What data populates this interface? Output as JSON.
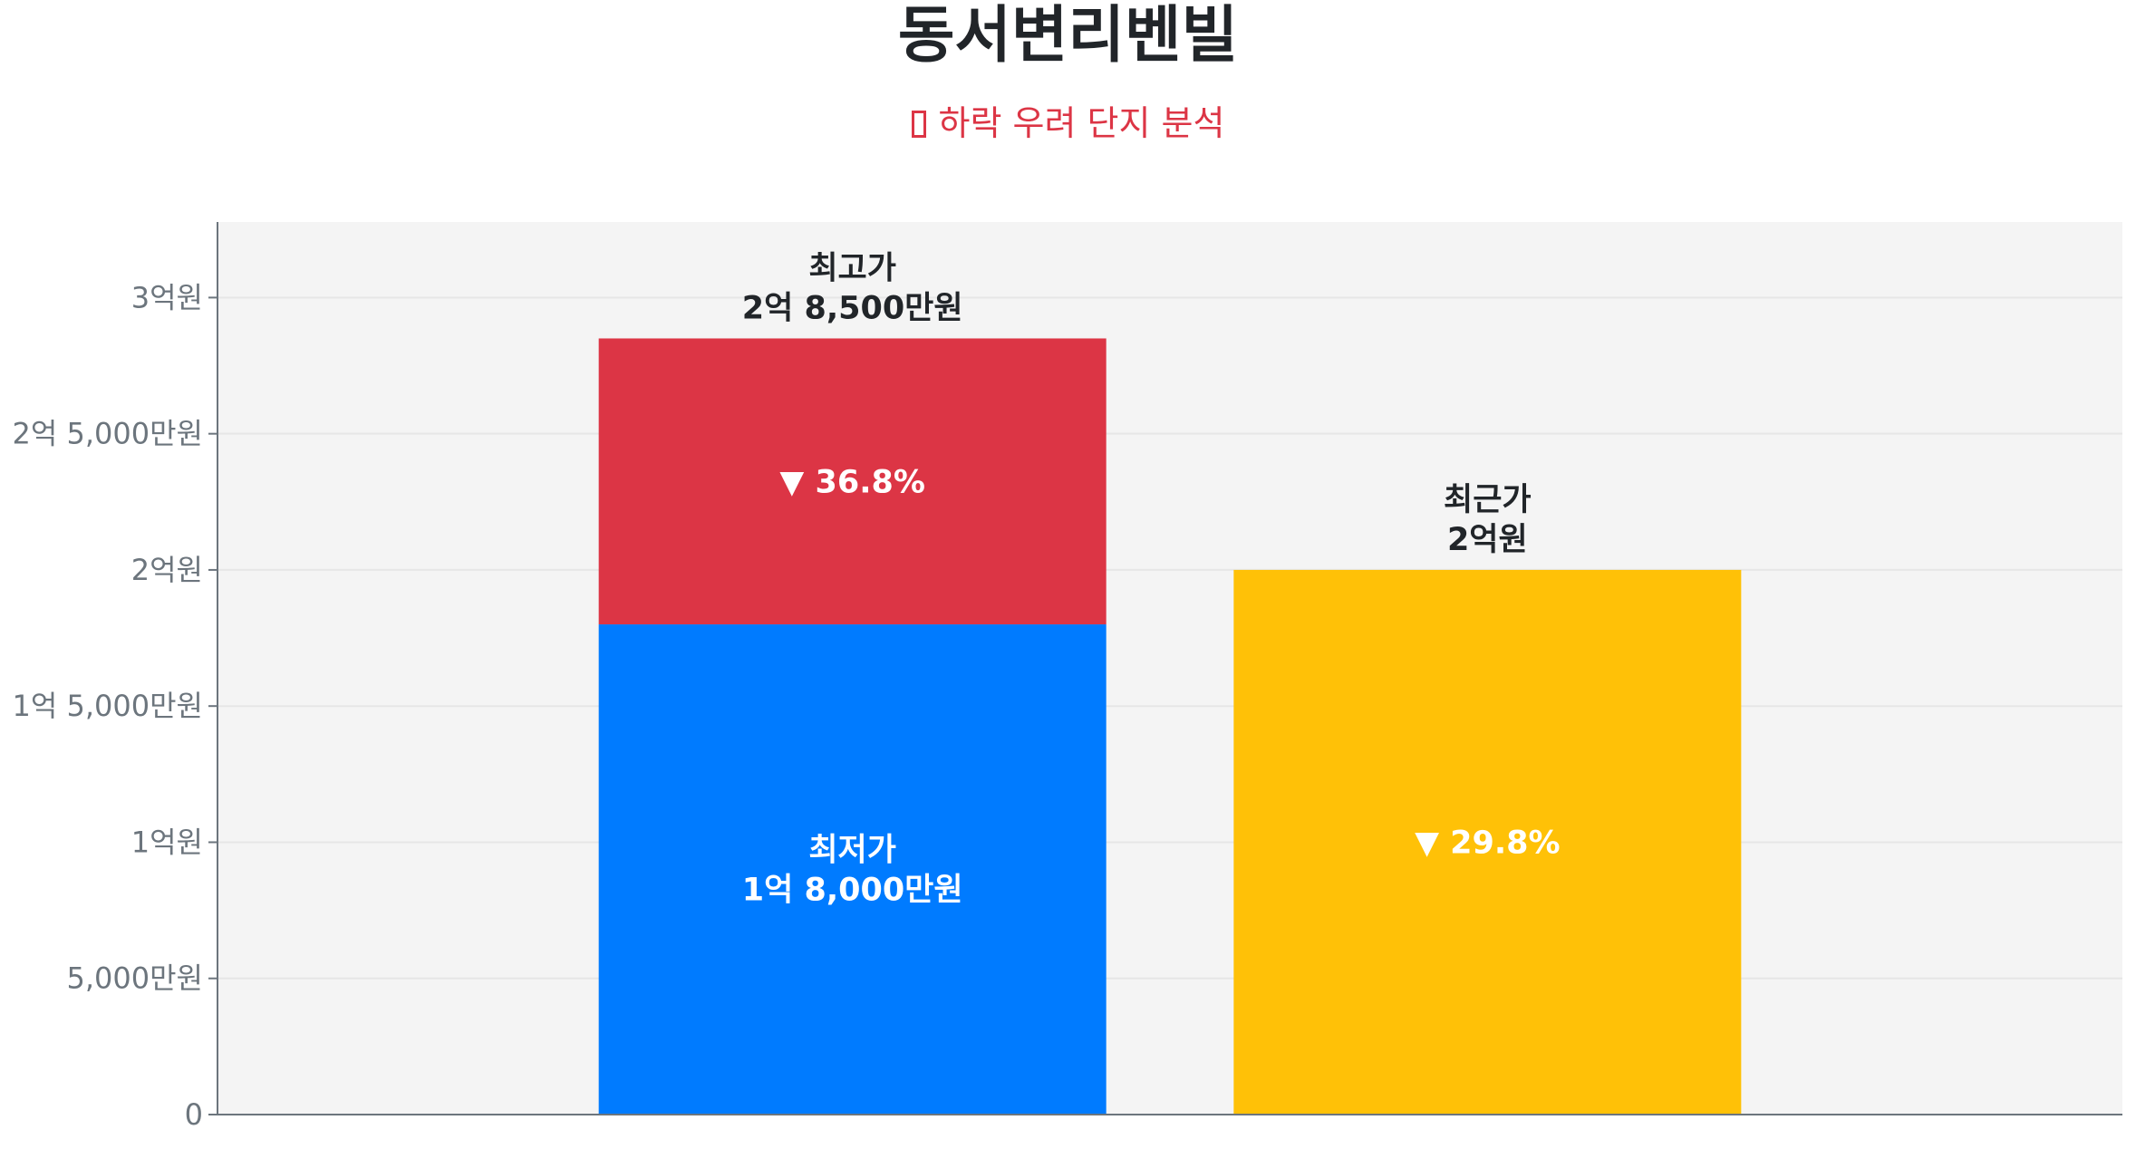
{
  "title": "동서변리벤빌",
  "subtitle": {
    "icon": "chart-decreasing-icon",
    "text": "하락 우려 단지 분석"
  },
  "chart_data": {
    "type": "bar",
    "stacked": true,
    "title": "동서변리벤빌",
    "subtitle": "하락 우려 단지 분석",
    "xlabel": "",
    "ylabel": "",
    "ylim": [
      0,
      327750000
    ],
    "grid": true,
    "legend": "none",
    "plot_background": "#f4f4f4",
    "yticks": [
      {
        "value": 0,
        "label": "0"
      },
      {
        "value": 50000000,
        "label": "5,000만원"
      },
      {
        "value": 100000000,
        "label": "1억원"
      },
      {
        "value": 150000000,
        "label": "1억 5,000만원"
      },
      {
        "value": 200000000,
        "label": "2억원"
      },
      {
        "value": 250000000,
        "label": "2억 5,000만원"
      },
      {
        "value": 300000000,
        "label": "3억원"
      }
    ],
    "bars": [
      {
        "segments": [
          {
            "name": "최저가",
            "value": 180000000,
            "color": "#007bff",
            "label_lines": [
              "최저가",
              "1억 8,000만원"
            ],
            "label_color": "#ffffff"
          },
          {
            "name": "drop",
            "value": 105000000,
            "color": "#dc3545",
            "label_lines": [
              "▼ 36.8%"
            ],
            "label_color": "#ffffff"
          }
        ],
        "top_label_lines": [
          "최고가",
          "2억 8,500만원"
        ],
        "total": 285000000
      },
      {
        "segments": [
          {
            "name": "최근가",
            "value": 200000000,
            "color": "#ffc107",
            "label_lines": [
              "▼ 29.8%"
            ],
            "label_color": "#ffffff"
          }
        ],
        "top_label_lines": [
          "최근가",
          "2억원"
        ],
        "total": 200000000
      }
    ]
  }
}
